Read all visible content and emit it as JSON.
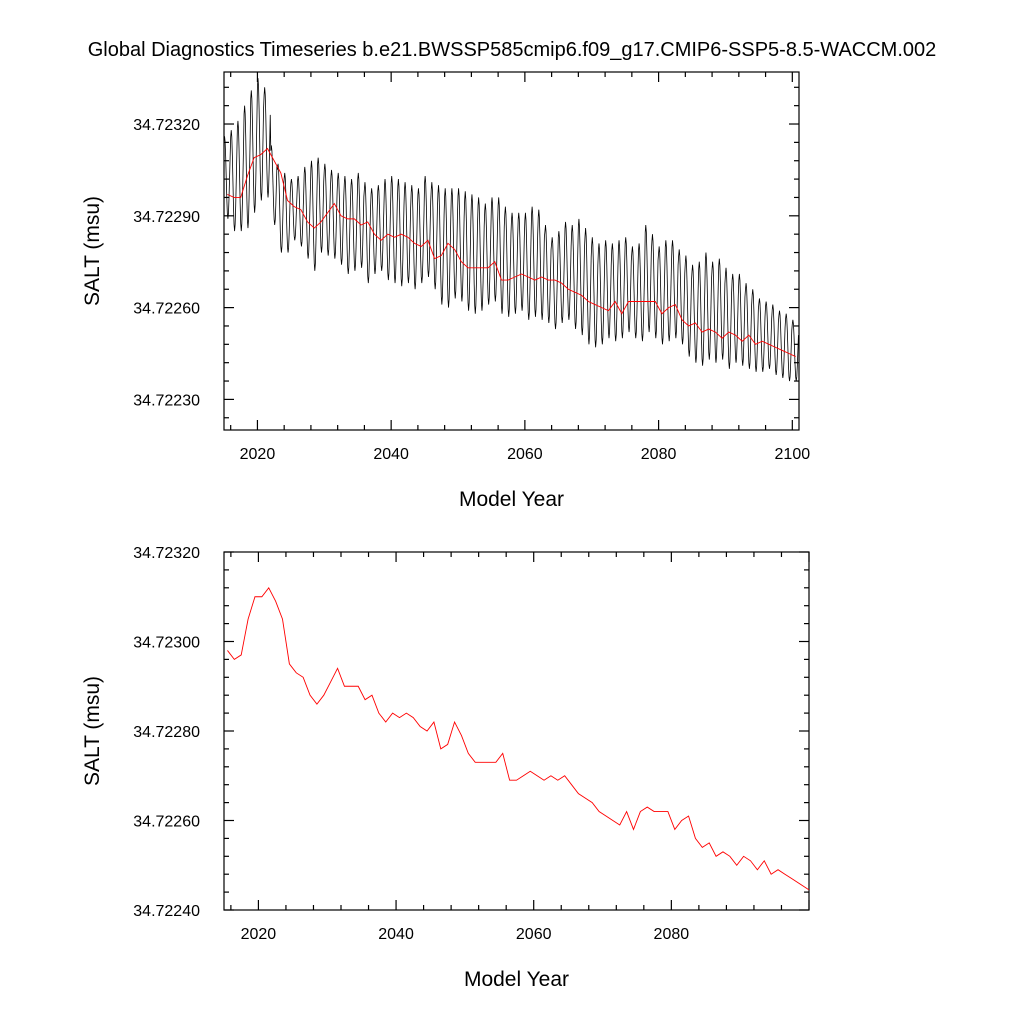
{
  "title": "Global Diagnostics Timeseries b.e21.BWSSP585cmip6.f09_g17.CMIP6-SSP5-8.5-WACCM.002",
  "colors": {
    "monthly": "#000000",
    "annual": "#ff0000",
    "frame": "#000000"
  },
  "chart_data": [
    {
      "type": "line",
      "xlabel": "Model Year",
      "ylabel": "SALT (msu)",
      "xlim": [
        2015,
        2101
      ],
      "ylim": [
        34.7222,
        34.72337
      ],
      "xticks": [
        2020,
        2040,
        2060,
        2080,
        2100
      ],
      "xtick_labels": [
        "2020",
        "2040",
        "2060",
        "2080",
        "2100"
      ],
      "yticks": [
        34.7223,
        34.7226,
        34.7229,
        34.7232
      ],
      "ytick_labels": [
        "34.72230",
        "34.72260",
        "34.72290",
        "34.72320"
      ],
      "series": [
        {
          "style": "monthly",
          "seasonal_max": [
            34.72316,
            34.72318,
            34.72321,
            34.72326,
            34.72331,
            34.72335,
            34.72332,
            34.72313,
            34.72307,
            34.72304,
            34.72302,
            34.72303,
            34.72306,
            34.72308,
            34.72309,
            34.72307,
            34.72305,
            34.72304,
            34.72303,
            34.72302,
            34.72304,
            34.72301,
            34.72299,
            34.723,
            34.72302,
            34.72303,
            34.72302,
            34.72301,
            34.723,
            34.72299,
            34.72303,
            34.72301,
            34.723,
            34.72299,
            34.72299,
            34.72299,
            34.72298,
            34.72297,
            34.72296,
            34.72294,
            34.72296,
            34.72296,
            34.72293,
            34.72291,
            34.72291,
            34.72291,
            34.72293,
            34.72292,
            34.72287,
            34.72283,
            34.72285,
            34.72288,
            34.72287,
            34.72289,
            34.72286,
            34.72283,
            34.72281,
            34.72282,
            34.72281,
            34.72282,
            34.72283,
            34.7228,
            34.72281,
            34.72287,
            34.72284,
            34.7228,
            34.72282,
            34.72282,
            34.72279,
            34.72277,
            34.72274,
            34.72275,
            34.72278,
            34.72275,
            34.72276,
            34.72273,
            34.72271,
            34.72271,
            34.72268,
            34.72266,
            34.72263,
            34.72262,
            34.72261,
            34.72259,
            34.72258,
            34.72256
          ],
          "seasonal_min": [
            34.72289,
            34.72285,
            34.72285,
            34.72286,
            34.72291,
            34.72295,
            34.72296,
            34.72287,
            34.72278,
            34.72278,
            34.72282,
            34.7228,
            34.72276,
            34.72272,
            34.72278,
            34.72277,
            34.72276,
            34.72274,
            34.72271,
            34.72272,
            34.72273,
            34.72268,
            34.72271,
            34.72272,
            34.72269,
            34.72268,
            34.72267,
            34.72268,
            34.72266,
            34.72268,
            34.7227,
            34.72266,
            34.72261,
            34.7226,
            34.72263,
            34.72262,
            34.72259,
            34.72258,
            34.72259,
            34.72261,
            34.72262,
            34.72258,
            34.72257,
            34.72258,
            34.72259,
            34.72256,
            34.72257,
            34.72256,
            34.72255,
            34.72253,
            34.72255,
            34.72256,
            34.72253,
            34.72251,
            34.72248,
            34.72247,
            34.72248,
            34.7225,
            34.72249,
            34.7225,
            34.72252,
            34.7225,
            34.72249,
            34.72252,
            34.7225,
            34.72248,
            34.72249,
            34.7225,
            34.72248,
            34.72244,
            34.72242,
            34.72241,
            34.72243,
            34.72242,
            34.72243,
            34.7224,
            34.72242,
            34.72241,
            34.7224,
            34.72239,
            34.72239,
            34.7224,
            34.72238,
            34.72237,
            34.72236,
            34.72236
          ]
        },
        {
          "style": "annual",
          "x": [
            2015.5,
            2016.5,
            2017.5,
            2018.5,
            2019.5,
            2020.5,
            2021.5,
            2022.5,
            2023.5,
            2024.5,
            2025.5,
            2026.5,
            2027.5,
            2028.5,
            2029.5,
            2030.5,
            2031.5,
            2032.5,
            2033.5,
            2034.5,
            2035.5,
            2036.5,
            2037.5,
            2038.5,
            2039.5,
            2040.5,
            2041.5,
            2042.5,
            2043.5,
            2044.5,
            2045.5,
            2046.5,
            2047.5,
            2048.5,
            2049.5,
            2050.5,
            2051.5,
            2052.5,
            2053.5,
            2054.5,
            2055.5,
            2056.5,
            2057.5,
            2058.5,
            2059.5,
            2060.5,
            2061.5,
            2062.5,
            2063.5,
            2064.5,
            2065.5,
            2066.5,
            2067.5,
            2068.5,
            2069.5,
            2070.5,
            2071.5,
            2072.5,
            2073.5,
            2074.5,
            2075.5,
            2076.5,
            2077.5,
            2078.5,
            2079.5,
            2080.5,
            2081.5,
            2082.5,
            2083.5,
            2084.5,
            2085.5,
            2086.5,
            2087.5,
            2088.5,
            2089.5,
            2090.5,
            2091.5,
            2092.5,
            2093.5,
            2094.5,
            2095.5,
            2096.5,
            2097.5,
            2098.5,
            2099.5,
            2100.5
          ],
          "values": [
            34.72297,
            34.72296,
            34.72296,
            34.72303,
            34.72309,
            34.7231,
            34.72312,
            34.72308,
            34.72304,
            34.72295,
            34.72293,
            34.72292,
            34.72288,
            34.72286,
            34.72288,
            34.72291,
            34.72294,
            34.7229,
            34.72289,
            34.72289,
            34.72287,
            34.72288,
            34.72284,
            34.72282,
            34.72284,
            34.72283,
            34.72284,
            34.72283,
            34.72281,
            34.7228,
            34.72282,
            34.72276,
            34.72277,
            34.72281,
            34.72279,
            34.72275,
            34.72273,
            34.72273,
            34.72273,
            34.72273,
            34.72275,
            34.72269,
            34.72269,
            34.7227,
            34.72271,
            34.7227,
            34.72269,
            34.7227,
            34.72269,
            34.72269,
            34.72268,
            34.72266,
            34.72265,
            34.72264,
            34.72262,
            34.72261,
            34.7226,
            34.72259,
            34.72262,
            34.72258,
            34.72262,
            34.72262,
            34.72262,
            34.72262,
            34.72262,
            34.72258,
            34.7226,
            34.72261,
            34.72256,
            34.72254,
            34.72255,
            34.72252,
            34.72253,
            34.72252,
            34.7225,
            34.72252,
            34.72251,
            34.72249,
            34.72251,
            34.72248,
            34.72249,
            34.72248,
            34.72247,
            34.72246,
            34.72245,
            34.72244
          ]
        }
      ]
    },
    {
      "type": "line",
      "xlabel": "Model Year",
      "ylabel": "SALT (msu)",
      "xlim": [
        2015,
        2100
      ],
      "ylim": [
        34.7224,
        34.7232
      ],
      "xticks": [
        2020,
        2040,
        2060,
        2080
      ],
      "xtick_labels": [
        "2020",
        "2040",
        "2060",
        "2080"
      ],
      "yticks": [
        34.7224,
        34.7226,
        34.7228,
        34.723,
        34.7232
      ],
      "ytick_labels": [
        "34.72240",
        "34.72260",
        "34.72280",
        "34.72300",
        "34.72320"
      ],
      "series": [
        {
          "style": "annual",
          "x": [
            2015.5,
            2016.5,
            2017.5,
            2018.5,
            2019.5,
            2020.5,
            2021.5,
            2022.5,
            2023.5,
            2024.5,
            2025.5,
            2026.5,
            2027.5,
            2028.5,
            2029.5,
            2030.5,
            2031.5,
            2032.5,
            2033.5,
            2034.5,
            2035.5,
            2036.5,
            2037.5,
            2038.5,
            2039.5,
            2040.5,
            2041.5,
            2042.5,
            2043.5,
            2044.5,
            2045.5,
            2046.5,
            2047.5,
            2048.5,
            2049.5,
            2050.5,
            2051.5,
            2052.5,
            2053.5,
            2054.5,
            2055.5,
            2056.5,
            2057.5,
            2058.5,
            2059.5,
            2060.5,
            2061.5,
            2062.5,
            2063.5,
            2064.5,
            2065.5,
            2066.5,
            2067.5,
            2068.5,
            2069.5,
            2070.5,
            2071.5,
            2072.5,
            2073.5,
            2074.5,
            2075.5,
            2076.5,
            2077.5,
            2078.5,
            2079.5,
            2080.5,
            2081.5,
            2082.5,
            2083.5,
            2084.5,
            2085.5,
            2086.5,
            2087.5,
            2088.5,
            2089.5,
            2090.5,
            2091.5,
            2092.5,
            2093.5,
            2094.5,
            2095.5,
            2096.5,
            2097.5,
            2098.5,
            2099.5,
            2100.5
          ],
          "values": [
            34.72298,
            34.72296,
            34.72297,
            34.72305,
            34.7231,
            34.7231,
            34.72312,
            34.72309,
            34.72305,
            34.72295,
            34.72293,
            34.72292,
            34.72288,
            34.72286,
            34.72288,
            34.72291,
            34.72294,
            34.7229,
            34.7229,
            34.7229,
            34.72287,
            34.72288,
            34.72284,
            34.72282,
            34.72284,
            34.72283,
            34.72284,
            34.72283,
            34.72281,
            34.7228,
            34.72282,
            34.72276,
            34.72277,
            34.72282,
            34.72279,
            34.72275,
            34.72273,
            34.72273,
            34.72273,
            34.72273,
            34.72275,
            34.72269,
            34.72269,
            34.7227,
            34.72271,
            34.7227,
            34.72269,
            34.7227,
            34.72269,
            34.7227,
            34.72268,
            34.72266,
            34.72265,
            34.72264,
            34.72262,
            34.72261,
            34.7226,
            34.72259,
            34.72262,
            34.72258,
            34.72262,
            34.72263,
            34.72262,
            34.72262,
            34.72262,
            34.72258,
            34.7226,
            34.72261,
            34.72256,
            34.72254,
            34.72255,
            34.72252,
            34.72253,
            34.72252,
            34.7225,
            34.72252,
            34.72251,
            34.72249,
            34.72251,
            34.72248,
            34.72249,
            34.72248,
            34.72247,
            34.72246,
            34.72245,
            34.72244
          ]
        }
      ]
    }
  ]
}
